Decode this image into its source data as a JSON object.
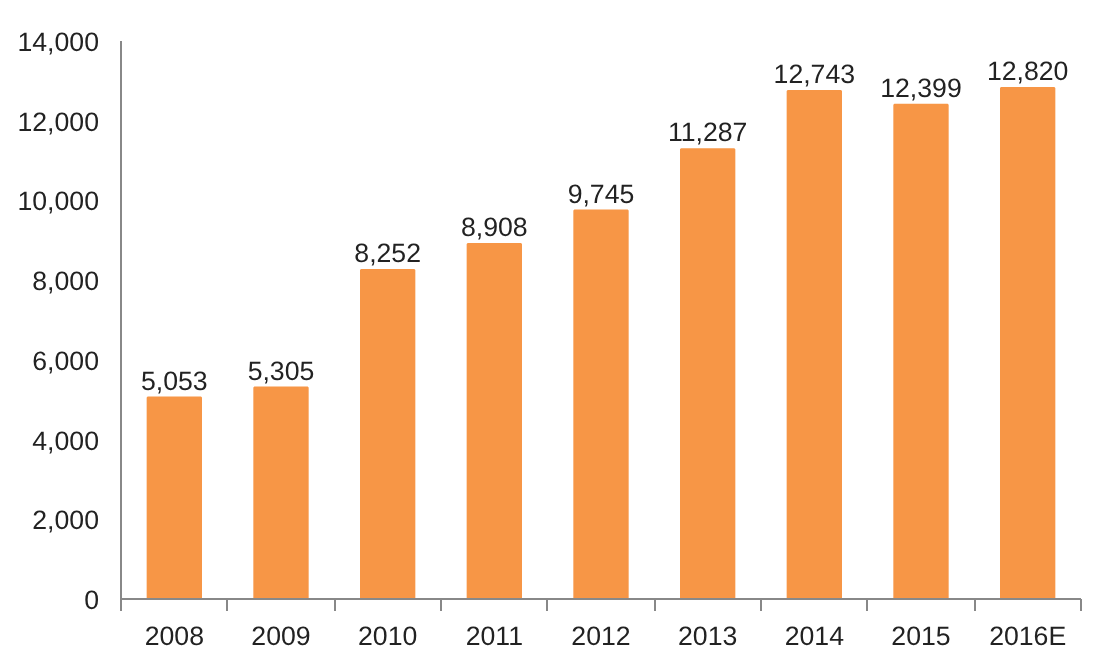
{
  "chart_data": {
    "type": "bar",
    "categories": [
      "2008",
      "2009",
      "2010",
      "2011",
      "2012",
      "2013",
      "2014",
      "2015",
      "2016E"
    ],
    "values": [
      5053,
      5305,
      8252,
      8908,
      9745,
      11287,
      12743,
      12399,
      12820
    ],
    "color": "#f79646",
    "ylim": [
      0,
      14000
    ],
    "yticks": [
      {
        "value": 0,
        "label": "0"
      },
      {
        "value": 2000,
        "label": "2,000"
      },
      {
        "value": 4000,
        "label": "4,000"
      },
      {
        "value": 6000,
        "label": "6,000"
      },
      {
        "value": 8000,
        "label": "8,000"
      },
      {
        "value": 10000,
        "label": "10,000"
      },
      {
        "value": 12000,
        "label": "12,000"
      },
      {
        "value": 14000,
        "label": "14,000"
      }
    ],
    "value_labels": [
      "5,053",
      "5,305",
      "8,252",
      "8,908",
      "9,745",
      "11,287",
      "12,743",
      "12,399",
      "12,820"
    ],
    "grid": false
  }
}
